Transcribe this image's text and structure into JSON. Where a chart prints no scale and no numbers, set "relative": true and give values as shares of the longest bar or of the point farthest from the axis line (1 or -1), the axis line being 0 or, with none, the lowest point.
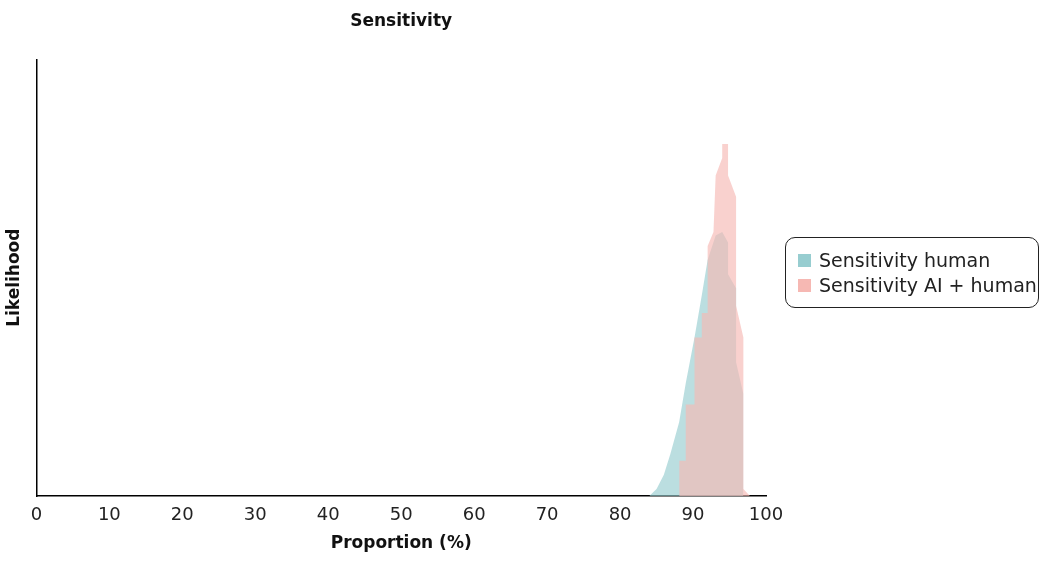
{
  "chart_data": {
    "type": "area",
    "title": "Sensitivity",
    "xlabel": "Proportion (%)",
    "ylabel": "Likelihood",
    "relative": true,
    "xlim": [
      0,
      100
    ],
    "xticks": [
      0,
      10,
      20,
      30,
      40,
      50,
      60,
      70,
      80,
      90,
      100
    ],
    "grid": false,
    "legend": "right",
    "series": [
      {
        "name": "Sensitivity human",
        "color": "#97cdd0",
        "x": [
          84.0,
          85.0,
          86.0,
          86.9,
          88.1,
          89.0,
          90.2,
          91.2,
          92.0,
          93.1,
          94.0,
          94.8,
          94.8,
          95.9,
          95.9,
          96.9,
          96.9
        ],
        "values": [
          0,
          0.02,
          0.06,
          0.12,
          0.21,
          0.32,
          0.45,
          0.57,
          0.67,
          0.74,
          0.75,
          0.72,
          0.63,
          0.59,
          0.38,
          0.29,
          0
        ]
      },
      {
        "name": "Sensitivity AI + human",
        "color": "#f6b8b3",
        "x": [
          88.1,
          88.1,
          89.0,
          89.0,
          90.2,
          90.2,
          91.2,
          91.2,
          92.0,
          92.0,
          92.8,
          93.1,
          94.0,
          94.0,
          94.8,
          94.8,
          95.9,
          95.9,
          96.9,
          96.9,
          97.8
        ],
        "values": [
          0,
          0.1,
          0.1,
          0.26,
          0.26,
          0.45,
          0.45,
          0.52,
          0.52,
          0.71,
          0.75,
          0.91,
          0.96,
          1,
          1,
          0.91,
          0.85,
          0.54,
          0.45,
          0.02,
          0
        ]
      }
    ]
  }
}
